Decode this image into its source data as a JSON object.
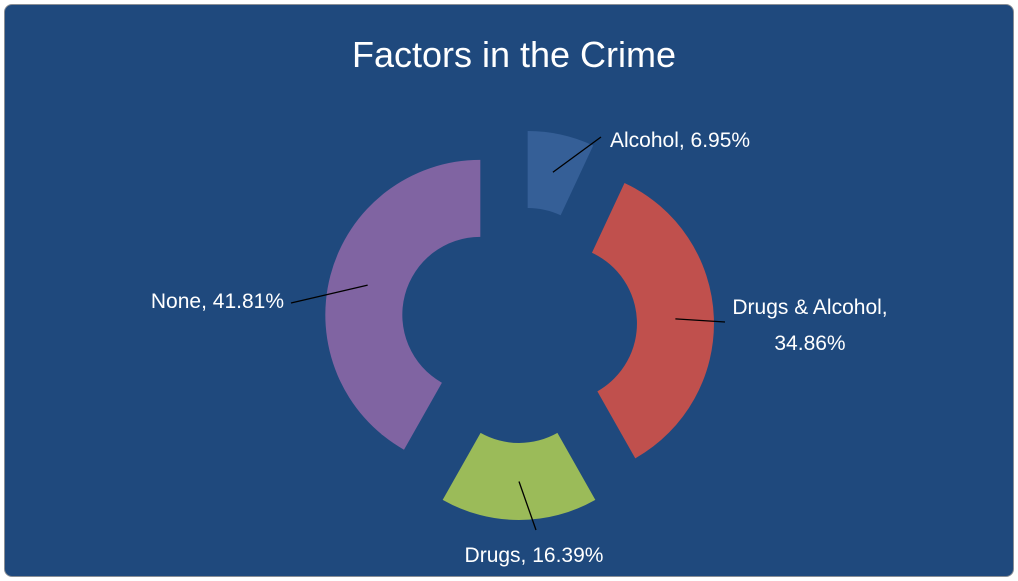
{
  "chart_data": {
    "type": "pie",
    "title": "Factors in the Crime",
    "donut": true,
    "exploded": true,
    "slices": [
      {
        "label": "Alcohol",
        "value": 6.95,
        "display": "Alcohol, 6.95%",
        "color": "#355f97"
      },
      {
        "label": "Drugs & Alcohol",
        "value": 34.86,
        "display_lines": [
          "Drugs & Alcohol,",
          "34.86%"
        ],
        "color": "#c0504d"
      },
      {
        "label": "Drugs",
        "value": 16.39,
        "display": "Drugs, 16.39%",
        "color": "#9bbb59"
      },
      {
        "label": "None",
        "value": 41.81,
        "display": "None, 41.81%",
        "color": "#8064a2"
      }
    ],
    "background_color": "#1f497d",
    "label_color": "#ffffff"
  }
}
